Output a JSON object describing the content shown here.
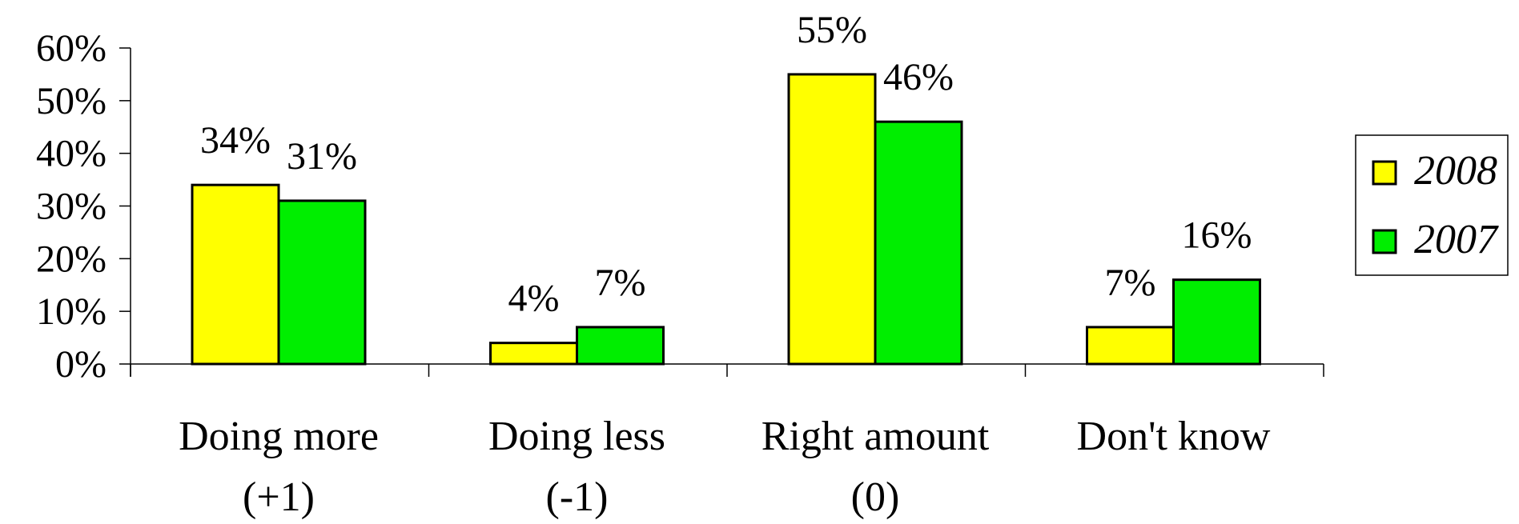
{
  "chart_data": {
    "type": "bar",
    "title": "",
    "xlabel": "",
    "ylabel": "",
    "ylim": [
      0,
      60
    ],
    "y_ticks": [
      "0%",
      "10%",
      "20%",
      "30%",
      "40%",
      "50%",
      "60%"
    ],
    "y_tick_values": [
      0,
      10,
      20,
      30,
      40,
      50,
      60
    ],
    "categories": [
      [
        "Doing more",
        "(+1)"
      ],
      [
        "Doing less",
        "(-1)"
      ],
      [
        "Right amount",
        "(0)"
      ],
      [
        "Don't know",
        ""
      ]
    ],
    "series": [
      {
        "name": "2008",
        "color": "#ffff00",
        "values": [
          34,
          4,
          55,
          7
        ],
        "labels": [
          "34%",
          "4%",
          "55%",
          "7%"
        ]
      },
      {
        "name": "2007",
        "color": "#00ee00",
        "values": [
          31,
          7,
          46,
          16
        ],
        "labels": [
          "31%",
          "7%",
          "46%",
          "16%"
        ]
      }
    ],
    "grid": false,
    "legend_position": "right"
  }
}
